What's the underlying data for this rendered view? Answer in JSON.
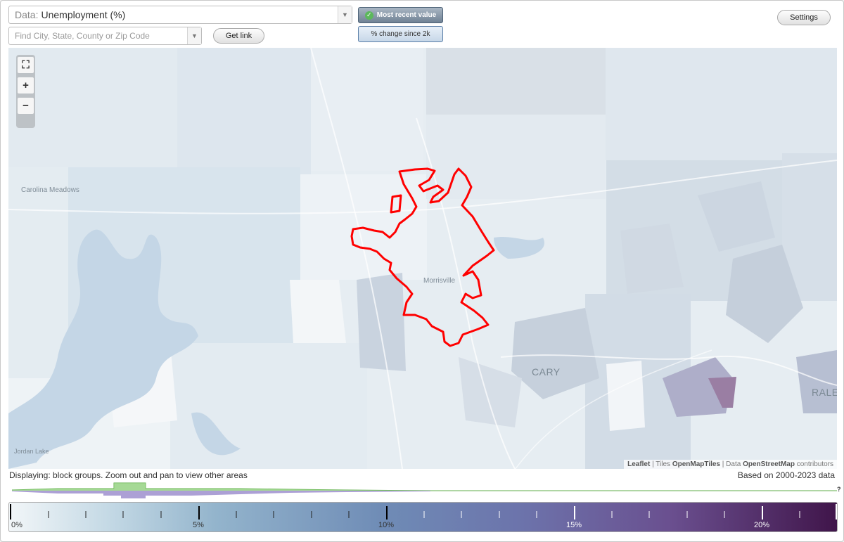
{
  "toolbar": {
    "data_prefix": "Data:",
    "data_value": "Unemployment (%)",
    "search_placeholder": "Find City, State, County or Zip Code",
    "get_link_label": "Get link",
    "settings_label": "Settings",
    "mode_active_label": "Most recent value",
    "mode_inactive_label": "% change since 2k"
  },
  "map": {
    "place_labels": [
      "Carolina Meadows",
      "Morrisville",
      "CARY",
      "RALE",
      "Jordan Lake"
    ],
    "zoom_in": "+",
    "zoom_out": "−",
    "attribution": {
      "leaflet": "Leaflet",
      "sep1": " | Tiles ",
      "tiles": "OpenMapTiles",
      "sep2": " | Data ",
      "data": "OpenStreetMap",
      "suffix": " contributors"
    }
  },
  "footer": {
    "displaying": "Displaying: block groups. Zoom out and pan to view other areas",
    "based_on": "Based on 2000-2023 data",
    "unknown_marker": "?"
  },
  "legend": {
    "labels": [
      "0%",
      "5%",
      "10%",
      "15%",
      "20%"
    ],
    "colors": {
      "low": "#f2f6f8",
      "mid": "#6f8cb6",
      "high": "#40154a",
      "outline": "#ff0000",
      "histogram_green": "#8fcf7a",
      "histogram_purple": "#9e8fce"
    }
  }
}
